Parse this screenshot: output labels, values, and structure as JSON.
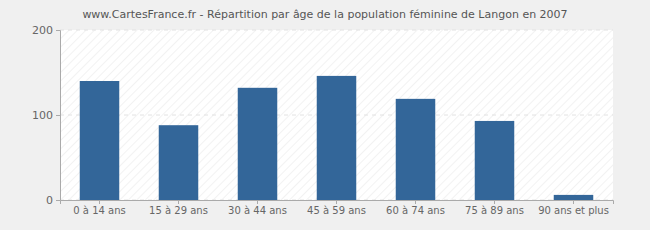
{
  "chart_data": {
    "type": "bar",
    "title": "www.CartesFrance.fr - Répartition par âge de la population féminine de Langon en 2007",
    "categories": [
      "0 à 14 ans",
      "15 à 29 ans",
      "30 à 44 ans",
      "45 à 59 ans",
      "60 à 74 ans",
      "75 à 89 ans",
      "90 ans et plus"
    ],
    "values": [
      140,
      88,
      132,
      146,
      119,
      93,
      6
    ],
    "color": "#336699",
    "ylim": [
      0,
      200
    ],
    "yticks": [
      0,
      100,
      200
    ],
    "grid": true
  }
}
